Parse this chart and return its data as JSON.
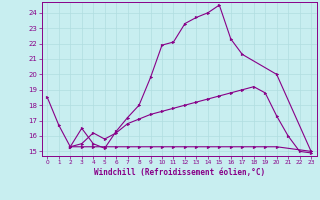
{
  "xlabel": "Windchill (Refroidissement éolien,°C)",
  "bg_color": "#c8eef0",
  "grid_color": "#b0dde0",
  "line_color": "#880088",
  "xlim": [
    -0.5,
    23.5
  ],
  "ylim": [
    14.7,
    24.7
  ],
  "yticks": [
    15,
    16,
    17,
    18,
    19,
    20,
    21,
    22,
    23,
    24
  ],
  "xticks": [
    0,
    1,
    2,
    3,
    4,
    5,
    6,
    7,
    8,
    9,
    10,
    11,
    12,
    13,
    14,
    15,
    16,
    17,
    18,
    19,
    20,
    21,
    22,
    23
  ],
  "line1_x": [
    0,
    1,
    2,
    3,
    4,
    5,
    6,
    7,
    8,
    9,
    10,
    11,
    12,
    13,
    14,
    15,
    16,
    17,
    20,
    23
  ],
  "line1_y": [
    18.5,
    16.7,
    15.3,
    16.5,
    15.5,
    15.2,
    16.3,
    17.2,
    18.0,
    19.8,
    21.9,
    22.1,
    23.3,
    23.7,
    24.0,
    24.5,
    22.3,
    21.3,
    20.0,
    15.0
  ],
  "line2_x": [
    2,
    3,
    4,
    5,
    6,
    7,
    8,
    9,
    10,
    11,
    12,
    13,
    14,
    15,
    16,
    17,
    18,
    19,
    20,
    23
  ],
  "line2_y": [
    15.3,
    15.3,
    15.3,
    15.3,
    15.3,
    15.3,
    15.3,
    15.3,
    15.3,
    15.3,
    15.3,
    15.3,
    15.3,
    15.3,
    15.3,
    15.3,
    15.3,
    15.3,
    15.3,
    15.0
  ],
  "line3_x": [
    2,
    3,
    4,
    5,
    6,
    7,
    8,
    9,
    10,
    11,
    12,
    13,
    14,
    15,
    16,
    17,
    18,
    19,
    20,
    21,
    22,
    23
  ],
  "line3_y": [
    15.3,
    15.5,
    16.2,
    15.8,
    16.2,
    16.8,
    17.1,
    17.4,
    17.6,
    17.8,
    18.0,
    18.2,
    18.4,
    18.6,
    18.8,
    19.0,
    19.2,
    18.8,
    17.3,
    16.0,
    15.0,
    14.9
  ]
}
